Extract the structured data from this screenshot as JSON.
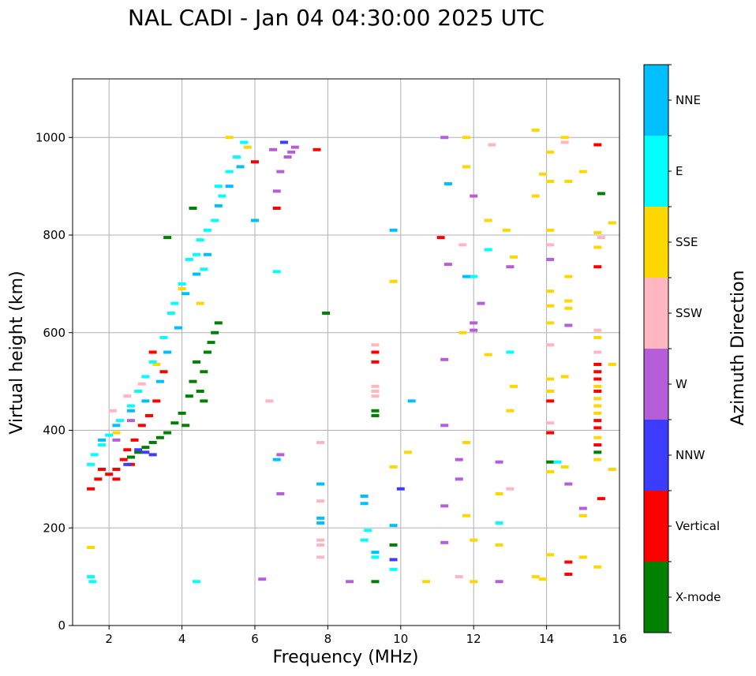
{
  "chart_data": {
    "type": "scatter",
    "title": "NAL CADI - Jan 04 04:30:00 2025 UTC",
    "xlabel": "Frequency (MHz)",
    "ylabel": "Virtual height (km)",
    "xlim": [
      1,
      16
    ],
    "ylim": [
      0,
      1120
    ],
    "xticks": [
      2,
      4,
      6,
      8,
      10,
      12,
      14,
      16
    ],
    "yticks": [
      0,
      200,
      400,
      600,
      800,
      1000
    ],
    "grid": true,
    "colorbar": {
      "label": "Azimuth Direction",
      "categories": [
        {
          "name": "X-mode",
          "color": "#008000"
        },
        {
          "name": "Vertical",
          "color": "#ff0000"
        },
        {
          "name": "NNW",
          "color": "#3c3cff"
        },
        {
          "name": "W",
          "color": "#b65dd8"
        },
        {
          "name": "SSW",
          "color": "#ffb6c1"
        },
        {
          "name": "SSE",
          "color": "#ffd700"
        },
        {
          "name": "E",
          "color": "#00ffff"
        },
        {
          "name": "NNE",
          "color": "#00bfff"
        }
      ]
    },
    "series": [
      {
        "name": "X-mode",
        "points": [
          [
            2.6,
            345
          ],
          [
            2.8,
            355
          ],
          [
            3.0,
            365
          ],
          [
            3.2,
            375
          ],
          [
            3.4,
            385
          ],
          [
            3.6,
            395
          ],
          [
            3.8,
            415
          ],
          [
            4.0,
            435
          ],
          [
            4.1,
            410
          ],
          [
            4.2,
            470
          ],
          [
            4.3,
            500
          ],
          [
            4.4,
            540
          ],
          [
            4.5,
            480
          ],
          [
            4.6,
            520
          ],
          [
            4.7,
            560
          ],
          [
            4.8,
            580
          ],
          [
            4.9,
            600
          ],
          [
            5.0,
            620
          ],
          [
            4.6,
            460
          ],
          [
            4.3,
            855
          ],
          [
            3.6,
            795
          ],
          [
            7.95,
            640
          ],
          [
            9.3,
            440
          ],
          [
            9.3,
            430
          ],
          [
            9.8,
            165
          ],
          [
            9.3,
            90
          ],
          [
            14.1,
            335
          ],
          [
            15.5,
            885
          ],
          [
            15.4,
            355
          ]
        ]
      },
      {
        "name": "Vertical",
        "points": [
          [
            1.5,
            280
          ],
          [
            1.7,
            300
          ],
          [
            1.8,
            320
          ],
          [
            2.0,
            310
          ],
          [
            2.2,
            320
          ],
          [
            2.4,
            340
          ],
          [
            2.5,
            360
          ],
          [
            2.7,
            380
          ],
          [
            2.9,
            410
          ],
          [
            3.1,
            430
          ],
          [
            3.3,
            460
          ],
          [
            3.5,
            520
          ],
          [
            3.2,
            560
          ],
          [
            2.2,
            300
          ],
          [
            2.6,
            330
          ],
          [
            6.0,
            950
          ],
          [
            6.6,
            855
          ],
          [
            7.7,
            975
          ],
          [
            9.3,
            560
          ],
          [
            9.3,
            540
          ],
          [
            11.1,
            795
          ],
          [
            14.1,
            460
          ],
          [
            14.1,
            395
          ],
          [
            14.6,
            130
          ],
          [
            14.6,
            105
          ],
          [
            15.4,
            985
          ],
          [
            15.4,
            735
          ],
          [
            15.4,
            535
          ],
          [
            15.4,
            520
          ],
          [
            15.4,
            505
          ],
          [
            15.4,
            480
          ],
          [
            15.4,
            420
          ],
          [
            15.4,
            405
          ],
          [
            15.4,
            370
          ],
          [
            15.5,
            260
          ]
        ]
      },
      {
        "name": "NNW",
        "points": [
          [
            2.8,
            360
          ],
          [
            3.0,
            355
          ],
          [
            3.2,
            350
          ],
          [
            2.5,
            330
          ],
          [
            6.8,
            990
          ],
          [
            9.8,
            135
          ],
          [
            10.0,
            280
          ]
        ]
      },
      {
        "name": "W",
        "points": [
          [
            2.2,
            380
          ],
          [
            2.6,
            420
          ],
          [
            6.5,
            975
          ],
          [
            6.7,
            930
          ],
          [
            6.6,
            890
          ],
          [
            6.9,
            960
          ],
          [
            7.0,
            970
          ],
          [
            7.1,
            980
          ],
          [
            6.7,
            350
          ],
          [
            6.7,
            270
          ],
          [
            6.2,
            95
          ],
          [
            8.6,
            90
          ],
          [
            11.2,
            1000
          ],
          [
            11.3,
            740
          ],
          [
            11.6,
            340
          ],
          [
            11.2,
            545
          ],
          [
            11.2,
            410
          ],
          [
            11.6,
            300
          ],
          [
            11.2,
            245
          ],
          [
            11.2,
            170
          ],
          [
            12.0,
            880
          ],
          [
            12.2,
            660
          ],
          [
            12.0,
            620
          ],
          [
            12.0,
            605
          ],
          [
            12.7,
            335
          ],
          [
            12.7,
            90
          ],
          [
            13.0,
            735
          ],
          [
            14.1,
            750
          ],
          [
            14.6,
            615
          ],
          [
            14.6,
            290
          ],
          [
            15.0,
            240
          ]
        ]
      },
      {
        "name": "SSW",
        "points": [
          [
            2.1,
            440
          ],
          [
            2.5,
            470
          ],
          [
            2.9,
            495
          ],
          [
            6.4,
            460
          ],
          [
            7.8,
            375
          ],
          [
            7.8,
            255
          ],
          [
            7.8,
            175
          ],
          [
            7.8,
            165
          ],
          [
            7.8,
            140
          ],
          [
            9.3,
            575
          ],
          [
            9.3,
            490
          ],
          [
            9.3,
            480
          ],
          [
            9.3,
            470
          ],
          [
            11.7,
            780
          ],
          [
            11.6,
            100
          ],
          [
            12.5,
            985
          ],
          [
            13.0,
            280
          ],
          [
            14.1,
            780
          ],
          [
            14.1,
            575
          ],
          [
            14.1,
            415
          ],
          [
            14.5,
            990
          ],
          [
            15.4,
            605
          ],
          [
            15.4,
            560
          ],
          [
            15.5,
            795
          ]
        ]
      },
      {
        "name": "SSE",
        "points": [
          [
            1.5,
            160
          ],
          [
            2.2,
            395
          ],
          [
            2.8,
            480
          ],
          [
            3.3,
            535
          ],
          [
            4.0,
            690
          ],
          [
            4.5,
            660
          ],
          [
            5.3,
            1000
          ],
          [
            5.8,
            980
          ],
          [
            9.8,
            705
          ],
          [
            10.2,
            355
          ],
          [
            9.8,
            325
          ],
          [
            10.7,
            90
          ],
          [
            11.7,
            600
          ],
          [
            11.8,
            1000
          ],
          [
            11.8,
            940
          ],
          [
            11.8,
            375
          ],
          [
            11.8,
            225
          ],
          [
            12.0,
            175
          ],
          [
            12.0,
            90
          ],
          [
            12.4,
            830
          ],
          [
            12.4,
            555
          ],
          [
            12.7,
            270
          ],
          [
            12.7,
            165
          ],
          [
            12.9,
            810
          ],
          [
            13.0,
            440
          ],
          [
            13.1,
            755
          ],
          [
            13.1,
            490
          ],
          [
            13.7,
            1015
          ],
          [
            13.7,
            880
          ],
          [
            13.7,
            100
          ],
          [
            13.9,
            925
          ],
          [
            13.9,
            95
          ],
          [
            14.1,
            970
          ],
          [
            14.1,
            910
          ],
          [
            14.1,
            810
          ],
          [
            14.1,
            685
          ],
          [
            14.1,
            655
          ],
          [
            14.1,
            620
          ],
          [
            14.1,
            505
          ],
          [
            14.1,
            480
          ],
          [
            14.1,
            315
          ],
          [
            14.1,
            145
          ],
          [
            14.5,
            510
          ],
          [
            14.5,
            325
          ],
          [
            14.5,
            1000
          ],
          [
            14.6,
            910
          ],
          [
            14.6,
            715
          ],
          [
            14.6,
            665
          ],
          [
            14.6,
            650
          ],
          [
            15.0,
            930
          ],
          [
            15.0,
            225
          ],
          [
            15.0,
            140
          ],
          [
            15.4,
            805
          ],
          [
            15.4,
            775
          ],
          [
            15.4,
            590
          ],
          [
            15.4,
            490
          ],
          [
            15.4,
            465
          ],
          [
            15.4,
            450
          ],
          [
            15.4,
            435
          ],
          [
            15.4,
            385
          ],
          [
            15.4,
            340
          ],
          [
            15.4,
            120
          ],
          [
            15.8,
            825
          ],
          [
            15.8,
            535
          ],
          [
            15.8,
            320
          ]
        ]
      },
      {
        "name": "E",
        "points": [
          [
            1.5,
            330
          ],
          [
            1.6,
            350
          ],
          [
            1.8,
            370
          ],
          [
            2.0,
            390
          ],
          [
            2.3,
            420
          ],
          [
            2.6,
            450
          ],
          [
            2.8,
            480
          ],
          [
            3.0,
            510
          ],
          [
            3.2,
            540
          ],
          [
            3.5,
            590
          ],
          [
            3.7,
            640
          ],
          [
            3.8,
            660
          ],
          [
            4.0,
            700
          ],
          [
            4.2,
            750
          ],
          [
            4.5,
            790
          ],
          [
            4.7,
            810
          ],
          [
            4.9,
            830
          ],
          [
            5.1,
            880
          ],
          [
            5.3,
            930
          ],
          [
            5.5,
            960
          ],
          [
            5.7,
            990
          ],
          [
            4.6,
            730
          ],
          [
            4.4,
            760
          ],
          [
            5.0,
            900
          ],
          [
            1.5,
            100
          ],
          [
            1.55,
            90
          ],
          [
            4.4,
            90
          ],
          [
            6.6,
            725
          ],
          [
            9.0,
            175
          ],
          [
            9.1,
            195
          ],
          [
            9.3,
            140
          ],
          [
            9.8,
            115
          ],
          [
            12.0,
            715
          ],
          [
            12.4,
            770
          ],
          [
            12.7,
            210
          ],
          [
            13.0,
            560
          ],
          [
            14.3,
            335
          ]
        ]
      },
      {
        "name": "NNE",
        "points": [
          [
            1.8,
            380
          ],
          [
            2.2,
            410
          ],
          [
            2.6,
            440
          ],
          [
            3.0,
            460
          ],
          [
            3.4,
            500
          ],
          [
            3.6,
            560
          ],
          [
            3.9,
            610
          ],
          [
            4.1,
            680
          ],
          [
            4.4,
            720
          ],
          [
            4.7,
            760
          ],
          [
            5.0,
            860
          ],
          [
            5.3,
            900
          ],
          [
            5.6,
            940
          ],
          [
            6.0,
            830
          ],
          [
            6.6,
            340
          ],
          [
            7.8,
            290
          ],
          [
            7.8,
            220
          ],
          [
            7.8,
            210
          ],
          [
            9.0,
            265
          ],
          [
            9.0,
            250
          ],
          [
            9.3,
            150
          ],
          [
            9.8,
            205
          ],
          [
            9.8,
            810
          ],
          [
            10.3,
            460
          ],
          [
            11.3,
            905
          ],
          [
            11.8,
            715
          ]
        ]
      }
    ]
  }
}
